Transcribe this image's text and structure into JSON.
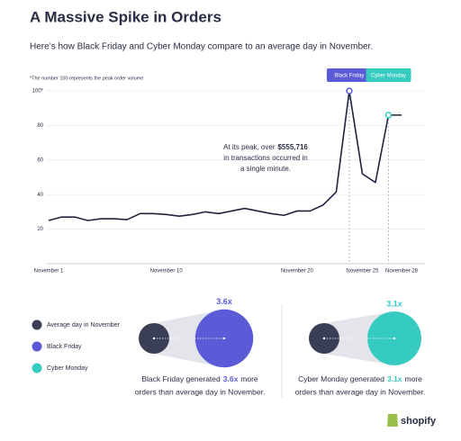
{
  "chart_data": {
    "type": "line",
    "title": "A Massive Spike in Orders",
    "subtitle": "Here’s how Black Friday and Cyber Monday compare to an average day in November.",
    "footnote": "*The number 100 represents the peak order volume",
    "categories": [
      "November 1",
      null,
      null,
      null,
      null,
      null,
      null,
      null,
      null,
      "November 10",
      null,
      null,
      null,
      null,
      null,
      null,
      null,
      null,
      null,
      "November 20",
      null,
      null,
      null,
      null,
      "November 25",
      null,
      null,
      "November 28"
    ],
    "values": [
      25,
      27,
      27,
      25,
      26,
      26,
      25.5,
      29,
      29,
      28.5,
      27.5,
      28.5,
      30,
      29,
      30.5,
      32,
      30.5,
      29,
      28,
      30.5,
      30.5,
      34,
      41.5,
      100,
      52,
      47,
      86,
      86
    ],
    "color": "#1f2440",
    "ylim": [
      0,
      100
    ],
    "yticks": [
      20,
      40,
      60,
      80,
      {
        "value": 100,
        "label": "100*"
      }
    ],
    "grid": true,
    "highlights": [
      {
        "index": 23,
        "label": "Black Friday",
        "color": "#5b5bd8"
      },
      {
        "index": 26,
        "label": "Cyber Monday",
        "color": "#36cbc0"
      }
    ],
    "annotation": {
      "line1": "At its peak, over",
      "bold": "$555,716",
      "line2": "in transactions occurred in",
      "line3": "a single minute."
    }
  },
  "comparison": {
    "legend": [
      {
        "name": "Average day in November",
        "color": "#3a3f55"
      },
      {
        "name": "Black Friday",
        "color": "#5b5bd8"
      },
      {
        "name": "Cyber Monday",
        "color": "#36cbc0"
      }
    ],
    "items": [
      {
        "value": 3.6,
        "value_label": "3.6x",
        "color": "#5b5bd8",
        "before": "Black Friday generated",
        "after": "more",
        "line2": "orders than average day in November."
      },
      {
        "value": 3.1,
        "value_label": "3.1x",
        "color": "#36cbc0",
        "before": "Cyber Monday generated",
        "after": "more",
        "line2": "orders than average day in November."
      }
    ]
  },
  "brand": "shopify"
}
